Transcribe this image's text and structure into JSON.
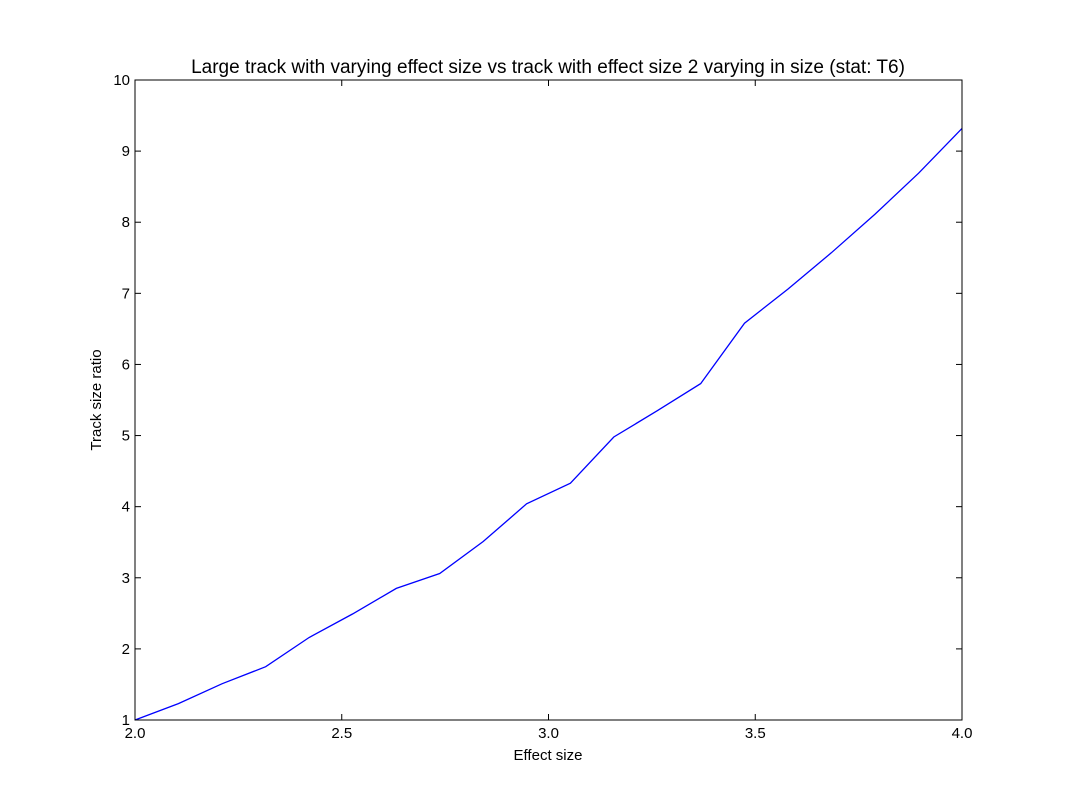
{
  "chart_data": {
    "type": "line",
    "title": "Large track with varying effect size vs track with effect size 2 varying in size (stat: T6)",
    "xlabel": "Effect size",
    "ylabel": "Track size ratio",
    "xlim": [
      2.0,
      4.0
    ],
    "ylim": [
      1,
      10
    ],
    "x_ticks": [
      "2.0",
      "2.5",
      "3.0",
      "3.5",
      "4.0"
    ],
    "y_ticks": [
      "1",
      "2",
      "3",
      "4",
      "5",
      "6",
      "7",
      "8",
      "9",
      "10"
    ],
    "grid": false,
    "series": [
      {
        "color": "#0000ff",
        "x": [
          2.0,
          2.105,
          2.211,
          2.316,
          2.421,
          2.526,
          2.632,
          2.737,
          2.842,
          2.947,
          3.053,
          3.158,
          3.263,
          3.368,
          3.474,
          3.579,
          3.684,
          3.789,
          3.895,
          4.0
        ],
        "y": [
          1.0,
          1.23,
          1.51,
          1.75,
          2.16,
          2.49,
          2.85,
          3.06,
          3.51,
          4.04,
          4.33,
          4.98,
          5.35,
          5.73,
          6.58,
          7.06,
          7.57,
          8.11,
          8.69,
          9.32
        ]
      }
    ]
  }
}
